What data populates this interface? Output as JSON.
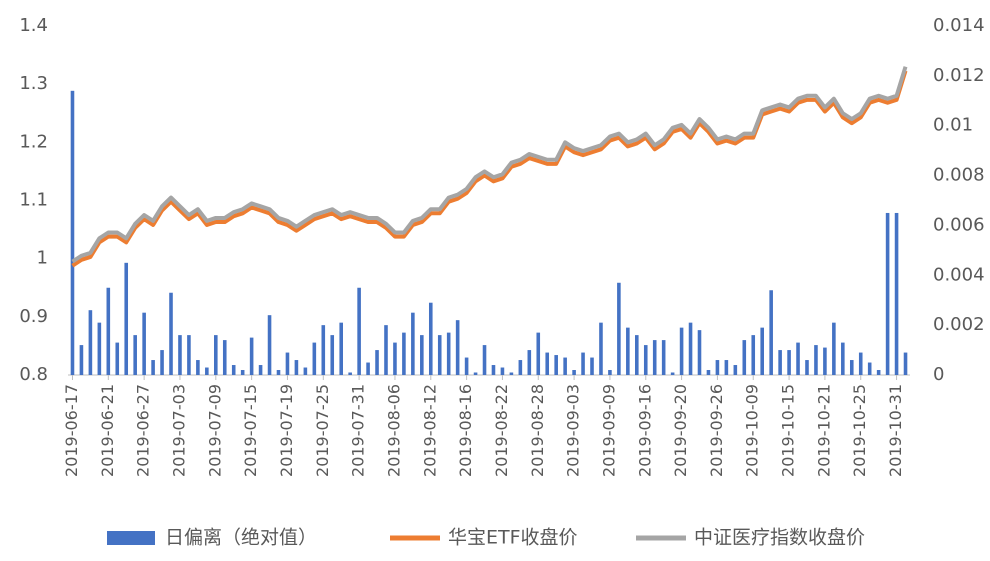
{
  "chart_data": {
    "type": "bar-line",
    "categories": [
      "2019-06-17",
      null,
      null,
      null,
      "2019-06-21",
      null,
      null,
      null,
      "2019-06-27",
      null,
      null,
      null,
      "2019-07-03",
      null,
      null,
      null,
      "2019-07-09",
      null,
      null,
      null,
      "2019-07-15",
      null,
      null,
      null,
      "2019-07-19",
      null,
      null,
      null,
      "2019-07-25",
      null,
      null,
      null,
      "2019-07-31",
      null,
      null,
      null,
      "2019-08-06",
      null,
      null,
      null,
      "2019-08-12",
      null,
      null,
      null,
      "2019-08-16",
      null,
      null,
      null,
      "2019-08-22",
      null,
      null,
      null,
      "2019-08-28",
      null,
      null,
      null,
      "2019-09-03",
      null,
      null,
      null,
      "2019-09-09",
      null,
      null,
      null,
      "2019-09-16",
      null,
      null,
      null,
      "2019-09-20",
      null,
      null,
      null,
      "2019-09-26",
      null,
      null,
      null,
      "2019-10-09",
      null,
      null,
      null,
      "2019-10-15",
      null,
      null,
      null,
      "2019-10-21",
      null,
      null,
      null,
      "2019-10-25",
      null,
      null,
      null,
      "2019-10-31",
      null
    ],
    "series": [
      {
        "name": "日偏离（绝对值）",
        "type": "bar",
        "axis": "y2",
        "color": "#4472c4",
        "values": [
          0.0114,
          0.0012,
          0.0026,
          0.0021,
          0.0035,
          0.0013,
          0.0045,
          0.0016,
          0.0025,
          0.0006,
          0.001,
          0.0033,
          0.0016,
          0.0016,
          0.0006,
          0.0003,
          0.0016,
          0.0014,
          0.0004,
          0.0002,
          0.0015,
          0.0004,
          0.0024,
          0.0002,
          0.0009,
          0.0006,
          0.0003,
          0.0013,
          0.002,
          0.0016,
          0.0021,
          0.0001,
          0.0035,
          0.0005,
          0.001,
          0.002,
          0.0013,
          0.0017,
          0.0025,
          0.0016,
          0.0029,
          0.0016,
          0.0017,
          0.0022,
          0.0007,
          0.0001,
          0.0012,
          0.0004,
          0.0003,
          0.0001,
          0.0006,
          0.001,
          0.0017,
          0.0009,
          0.0008,
          0.0007,
          0.0002,
          0.0009,
          0.0007,
          0.0021,
          0.0002,
          0.0037,
          0.0019,
          0.0016,
          0.0012,
          0.0014,
          0.0014,
          0.0001,
          0.0019,
          0.0021,
          0.0018,
          0.0002,
          0.0006,
          0.0006,
          0.0004,
          0.0014,
          0.0016,
          0.0019,
          0.0034,
          0.001,
          0.001,
          0.0013,
          0.0006,
          0.0012,
          0.0011,
          0.0021,
          0.0013,
          0.0006,
          0.0009,
          0.0005,
          0.0002,
          0.0065,
          0.0065,
          0.0009
        ]
      },
      {
        "name": "华宝ETF收盘价",
        "type": "line",
        "color": "#ed7d31",
        "values": [
          0.988,
          0.998,
          1.003,
          1.028,
          1.038,
          1.038,
          1.028,
          1.053,
          1.068,
          1.058,
          1.083,
          1.098,
          1.083,
          1.068,
          1.078,
          1.058,
          1.063,
          1.063,
          1.073,
          1.078,
          1.088,
          1.083,
          1.078,
          1.063,
          1.058,
          1.048,
          1.058,
          1.068,
          1.073,
          1.078,
          1.068,
          1.073,
          1.068,
          1.063,
          1.063,
          1.053,
          1.038,
          1.038,
          1.058,
          1.063,
          1.078,
          1.078,
          1.098,
          1.103,
          1.113,
          1.133,
          1.143,
          1.133,
          1.138,
          1.158,
          1.163,
          1.173,
          1.168,
          1.163,
          1.163,
          1.193,
          1.183,
          1.178,
          1.183,
          1.188,
          1.203,
          1.208,
          1.193,
          1.198,
          1.208,
          1.188,
          1.198,
          1.218,
          1.223,
          1.208,
          1.233,
          1.218,
          1.198,
          1.203,
          1.198,
          1.208,
          1.208,
          1.248,
          1.253,
          1.258,
          1.253,
          1.268,
          1.273,
          1.273,
          1.253,
          1.268,
          1.243,
          1.233,
          1.243,
          1.268,
          1.273,
          1.268,
          1.273,
          1.323
        ]
      },
      {
        "name": "中证医疗指数收盘价",
        "type": "line",
        "color": "#a5a5a5",
        "values": [
          0.995,
          1.005,
          1.01,
          1.035,
          1.045,
          1.045,
          1.035,
          1.06,
          1.075,
          1.065,
          1.09,
          1.105,
          1.09,
          1.075,
          1.085,
          1.065,
          1.07,
          1.07,
          1.08,
          1.085,
          1.095,
          1.09,
          1.085,
          1.07,
          1.065,
          1.055,
          1.065,
          1.075,
          1.08,
          1.085,
          1.075,
          1.08,
          1.075,
          1.07,
          1.07,
          1.06,
          1.045,
          1.045,
          1.065,
          1.07,
          1.085,
          1.085,
          1.105,
          1.11,
          1.12,
          1.14,
          1.15,
          1.14,
          1.145,
          1.165,
          1.17,
          1.18,
          1.175,
          1.17,
          1.17,
          1.2,
          1.19,
          1.185,
          1.19,
          1.195,
          1.21,
          1.215,
          1.2,
          1.205,
          1.215,
          1.195,
          1.205,
          1.225,
          1.23,
          1.215,
          1.24,
          1.225,
          1.205,
          1.21,
          1.205,
          1.215,
          1.215,
          1.255,
          1.26,
          1.265,
          1.26,
          1.275,
          1.28,
          1.28,
          1.26,
          1.275,
          1.25,
          1.24,
          1.25,
          1.275,
          1.28,
          1.275,
          1.28,
          1.33
        ]
      }
    ],
    "ylim": [
      0.8,
      1.4
    ],
    "yticks": [
      1.4,
      1.3,
      1.2,
      1.1,
      1,
      0.9,
      0.8
    ],
    "y2lim": [
      0,
      0.014
    ],
    "y2ticks": [
      0.014,
      0.012,
      0.01,
      0.008,
      0.006,
      0.004,
      0.002,
      0
    ]
  }
}
